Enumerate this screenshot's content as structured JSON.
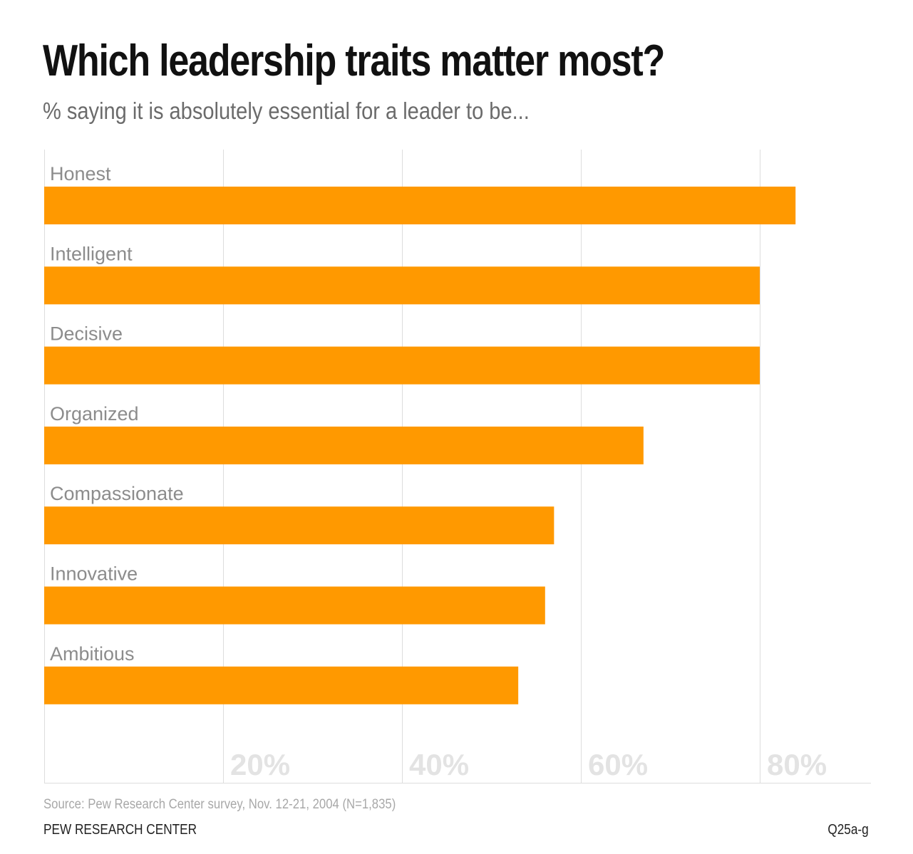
{
  "chart_data": {
    "type": "bar",
    "orientation": "horizontal",
    "title": "Which leadership traits matter most?",
    "subtitle": "% saying it is absolutely essential for a leader to be...",
    "categories": [
      "Honest",
      "Intelligent",
      "Decisive",
      "Organized",
      "Compassionate",
      "Innovative",
      "Ambitious"
    ],
    "values": [
      84,
      80,
      80,
      67,
      57,
      56,
      53
    ],
    "xlim": [
      0,
      92
    ],
    "xticks": [
      20,
      40,
      60,
      80
    ],
    "xtick_labels": [
      "20%",
      "40%",
      "60%",
      "80%"
    ],
    "grid": true,
    "bar_color": "#ff9900",
    "gridline_color": "#dddddd",
    "tick_label_color": "#e3e3e3",
    "category_label_color": "#8c8c8c"
  },
  "footer": {
    "source": "Source: Pew Research Center survey, Nov. 12-21, 2004 (N=1,835)",
    "organization": "PEW RESEARCH CENTER",
    "question_code": "Q25a-g"
  }
}
